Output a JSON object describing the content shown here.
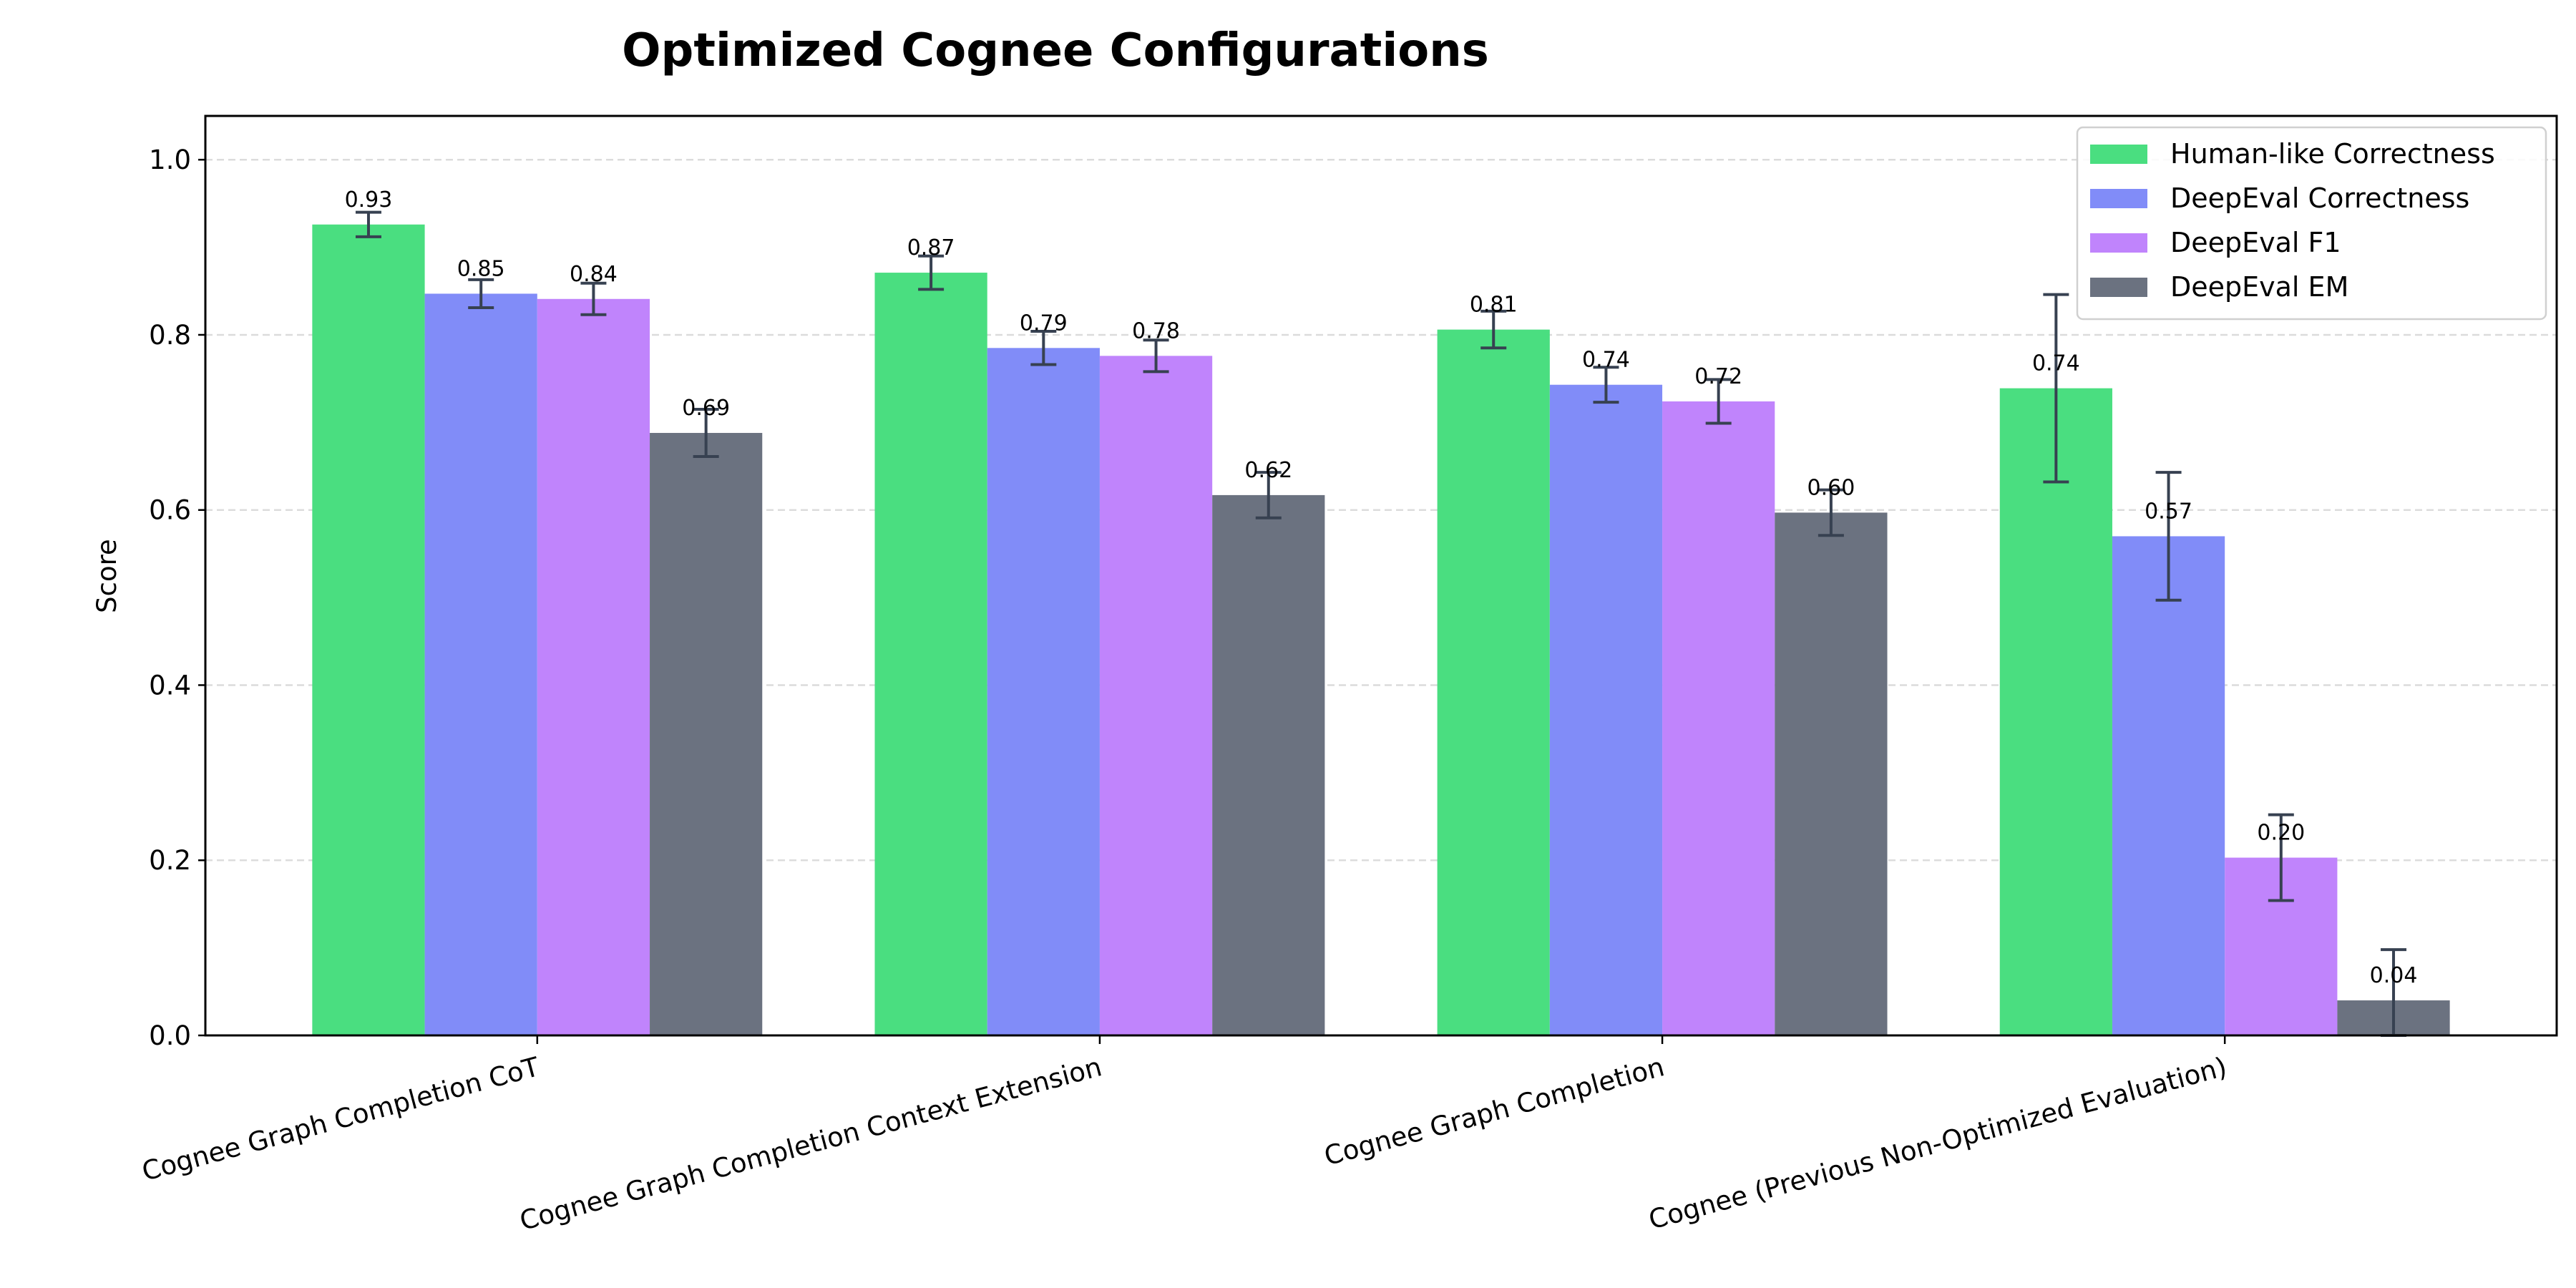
{
  "chart_data": {
    "type": "bar",
    "title": "Optimized Cognee Configurations",
    "xlabel": "",
    "ylabel": "Score",
    "ylim": [
      0,
      1.05
    ],
    "yticks": [
      "0.0",
      "0.2",
      "0.4",
      "0.6",
      "0.8",
      "1.0"
    ],
    "grid": "y, dashed",
    "legend_position": "top-right",
    "categories": [
      "Cognee Graph Completion CoT",
      "Cognee Graph Completion Context Extension",
      "Cognee Graph Completion",
      "Cognee (Previous Non-Optimized Evaluation)"
    ],
    "series": [
      {
        "name": "Human-like Correctness",
        "color": "#4ade80",
        "values": [
          0.926,
          0.871,
          0.806,
          0.739
        ],
        "labels": [
          "0.93",
          "0.87",
          "0.81",
          "0.74"
        ],
        "errors": [
          0.014,
          0.019,
          0.021,
          0.107
        ]
      },
      {
        "name": "DeepEval Correctness",
        "color": "#818cf8",
        "values": [
          0.847,
          0.785,
          0.743,
          0.57
        ],
        "labels": [
          "0.85",
          "0.79",
          "0.74",
          "0.57"
        ],
        "errors": [
          0.016,
          0.019,
          0.02,
          0.073
        ]
      },
      {
        "name": "DeepEval F1",
        "color": "#c084fc",
        "values": [
          0.841,
          0.776,
          0.724,
          0.203
        ],
        "labels": [
          "0.84",
          "0.78",
          "0.72",
          "0.20"
        ],
        "errors": [
          0.018,
          0.018,
          0.025,
          0.049
        ]
      },
      {
        "name": "DeepEval EM",
        "color": "#6b7280",
        "values": [
          0.688,
          0.617,
          0.597,
          0.04
        ],
        "labels": [
          "0.69",
          "0.62",
          "0.60",
          "0.04"
        ],
        "errors": [
          0.027,
          0.026,
          0.026,
          0.058
        ]
      }
    ],
    "error_bar_color": "#374151"
  }
}
